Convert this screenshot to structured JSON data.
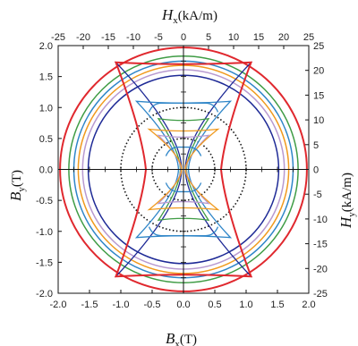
{
  "chart_data": {
    "type": "line",
    "xlabel": {
      "main": "B",
      "sub": "x",
      "unit": "(T)"
    },
    "ylabel": {
      "main": "B",
      "sub": "y",
      "unit": "(T)"
    },
    "x2label": {
      "main": "H",
      "sub": "x",
      "unit": "(kA/m)"
    },
    "y2label": {
      "main": "H",
      "sub": "y",
      "unit": "(kA/m)"
    },
    "xlim": [
      -2.0,
      2.0
    ],
    "ylim": [
      -2.0,
      2.0
    ],
    "x2lim": [
      -25,
      25
    ],
    "y2lim": [
      -25,
      25
    ],
    "x_ticks": [
      "-2.0",
      "-1.5",
      "-1.0",
      "-0.5",
      "0.0",
      "0.5",
      "1.0",
      "1.5",
      "2.0"
    ],
    "y_ticks": [
      "-2.0",
      "-1.5",
      "-1.0",
      "-0.5",
      "0.0",
      "0.5",
      "1.0",
      "1.5",
      "2.0"
    ],
    "x2_ticks": [
      "-25",
      "-20",
      "-15",
      "-10",
      "-5",
      "0",
      "5",
      "10",
      "15",
      "20",
      "25"
    ],
    "y2_ticks": [
      "-25",
      "-20",
      "-15",
      "-10",
      "-5",
      "0",
      "5",
      "10",
      "15",
      "20",
      "25"
    ],
    "flux_loci_circles": [
      {
        "radius": 1.97,
        "color": "#e0282e"
      },
      {
        "radius": 1.83,
        "color": "#3f9c45"
      },
      {
        "radius": 1.75,
        "color": "#2f86c8"
      },
      {
        "radius": 1.68,
        "color": "#f09a1e"
      },
      {
        "radius": 1.61,
        "color": "#b89ad0"
      },
      {
        "radius": 1.52,
        "color": "#1e2a96"
      }
    ],
    "reference_circles": [
      {
        "radius": 1.0,
        "color": "#111111",
        "style": "dotted"
      },
      {
        "radius": 0.5,
        "color": "#111111",
        "style": "dotted"
      }
    ],
    "field_loci": [
      {
        "color": "#1e2a96",
        "waist": 0.03,
        "tips": [
          [
            1.08,
            1.73
          ],
          [
            -1.08,
            1.73
          ],
          [
            -1.08,
            -1.73
          ],
          [
            1.08,
            -1.73
          ]
        ]
      },
      {
        "color": "#2f86c8",
        "waist": 0.08,
        "tips": [
          [
            0.75,
            1.1
          ],
          [
            -0.75,
            1.1
          ],
          [
            -0.75,
            -1.1
          ],
          [
            0.75,
            -1.1
          ]
        ]
      },
      {
        "color": "#3f9c45",
        "waist": 0.05,
        "tips": [
          [
            0.4,
            0.82
          ],
          [
            -0.4,
            0.82
          ],
          [
            -0.4,
            -0.82
          ],
          [
            0.4,
            -0.82
          ]
        ]
      },
      {
        "color": "#b89ad0",
        "waist": 0.04,
        "tips": [
          [
            0.4,
            0.55
          ],
          [
            -0.4,
            0.55
          ],
          [
            -0.4,
            -0.55
          ],
          [
            0.4,
            -0.55
          ]
        ]
      },
      {
        "color": "#f09a1e",
        "waist": 0.03,
        "tips": [
          [
            0.55,
            0.65
          ],
          [
            -0.55,
            0.65
          ],
          [
            -0.55,
            -0.65
          ],
          [
            0.55,
            -0.65
          ]
        ]
      },
      {
        "color": "#e0282e",
        "waist": 0.6,
        "tips": [
          [
            1.08,
            1.73
          ],
          [
            -1.08,
            1.73
          ],
          [
            -1.08,
            -1.73
          ],
          [
            1.08,
            -1.73
          ]
        ]
      }
    ],
    "inner_plateaus": [
      {
        "color": "#2f86c8",
        "y": 1.07,
        "half_width": 0.55
      },
      {
        "color": "#2f86c8",
        "y": 0.36,
        "half_width": 0.28
      }
    ],
    "grid": false,
    "legend": "none"
  }
}
